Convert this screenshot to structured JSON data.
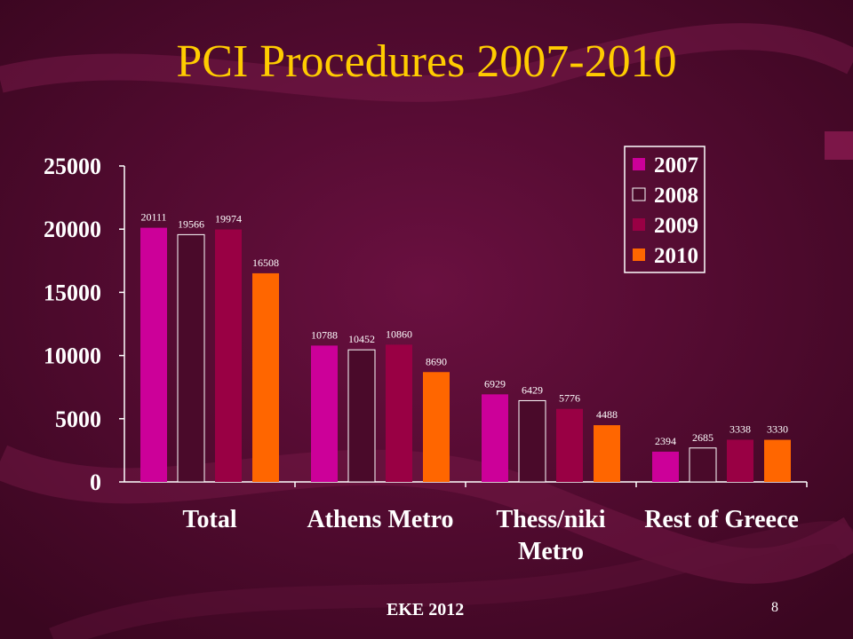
{
  "slide": {
    "title": "PCI Procedures 2007-2010",
    "footer_left": "EKE 2012",
    "page_number": "8"
  },
  "colors": {
    "background": "#4a0a2a",
    "title": "#ffcc00",
    "text": "#ffffff",
    "axis": "#ffffff",
    "series": [
      "#cc0099",
      "#4a0a2a",
      "#990044",
      "#ff6600"
    ]
  },
  "chart_data": {
    "type": "bar",
    "categories": [
      "Total",
      "Athens Metro",
      "Thess/niki Metro",
      "Rest of Greece"
    ],
    "series": [
      {
        "name": "2007",
        "values": [
          20111,
          10788,
          6929,
          2394
        ]
      },
      {
        "name": "2008",
        "values": [
          19566,
          10452,
          6429,
          2685
        ]
      },
      {
        "name": "2009",
        "values": [
          19974,
          10860,
          5776,
          3338
        ]
      },
      {
        "name": "2010",
        "values": [
          16508,
          8690,
          4488,
          3330
        ]
      }
    ],
    "ylim": [
      0,
      25000
    ],
    "yticks": [
      "25000",
      "20000",
      "15000",
      "10000",
      "5000",
      "0"
    ],
    "legend": "top-right",
    "grid": false
  }
}
